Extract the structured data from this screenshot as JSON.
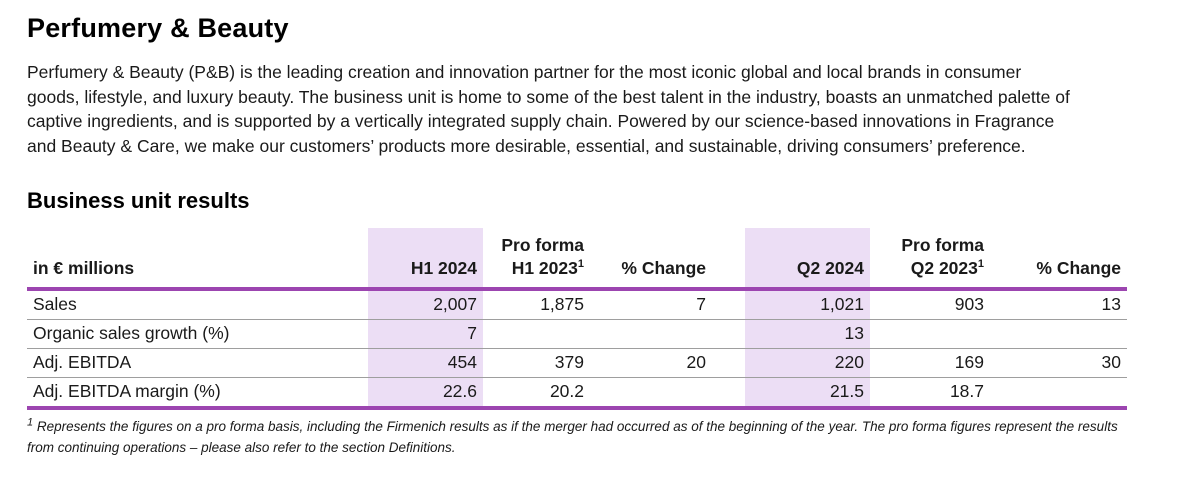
{
  "page": {
    "title": "Perfumery & Beauty",
    "intro": "Perfumery & Beauty (P&B) is the leading creation and innovation partner for the most iconic global and local brands in consumer goods, lifestyle, and luxury beauty. The business unit is home to some of the best talent in the industry, boasts an unmatched palette of captive ingredients, and is supported by a vertically integrated supply chain. Powered by our science-based innovations in Fragrance and Beauty & Care, we make our customers’ products more desirable, essential, and sustainable, driving consumers’ preference.",
    "section_heading": "Business unit results"
  },
  "table": {
    "unit_label": "in € millions",
    "headers": {
      "pro_forma": "Pro forma",
      "h1_2024": "H1 2024",
      "h1_2023": "H1 2023",
      "change_h1": "% Change",
      "q2_2024": "Q2 2024",
      "q2_2023": "Q2 2023",
      "change_q2": "% Change",
      "footnote_ref": "1"
    },
    "rows": [
      {
        "label": "Sales",
        "values": [
          "2,007",
          "1,875",
          "7",
          "1,021",
          "903",
          "13"
        ]
      },
      {
        "label": "Organic sales growth (%)",
        "values": [
          "7",
          "",
          "",
          "13",
          "",
          ""
        ]
      },
      {
        "label": "Adj. EBITDA",
        "values": [
          "454",
          "379",
          "20",
          "220",
          "169",
          "30"
        ]
      },
      {
        "label": "Adj. EBITDA margin (%)",
        "values": [
          "22.6",
          "20.2",
          "",
          "21.5",
          "18.7",
          ""
        ]
      }
    ],
    "colors": {
      "highlight": "#ECDEF5",
      "rule": "#9C45B0"
    }
  },
  "footnote": {
    "marker": "1",
    "text": "Represents the figures on a pro forma basis, including the Firmenich results as if the merger had occurred as of the beginning of the year. The pro forma figures represent the results from continuing operations – please also refer to the section Definitions."
  }
}
